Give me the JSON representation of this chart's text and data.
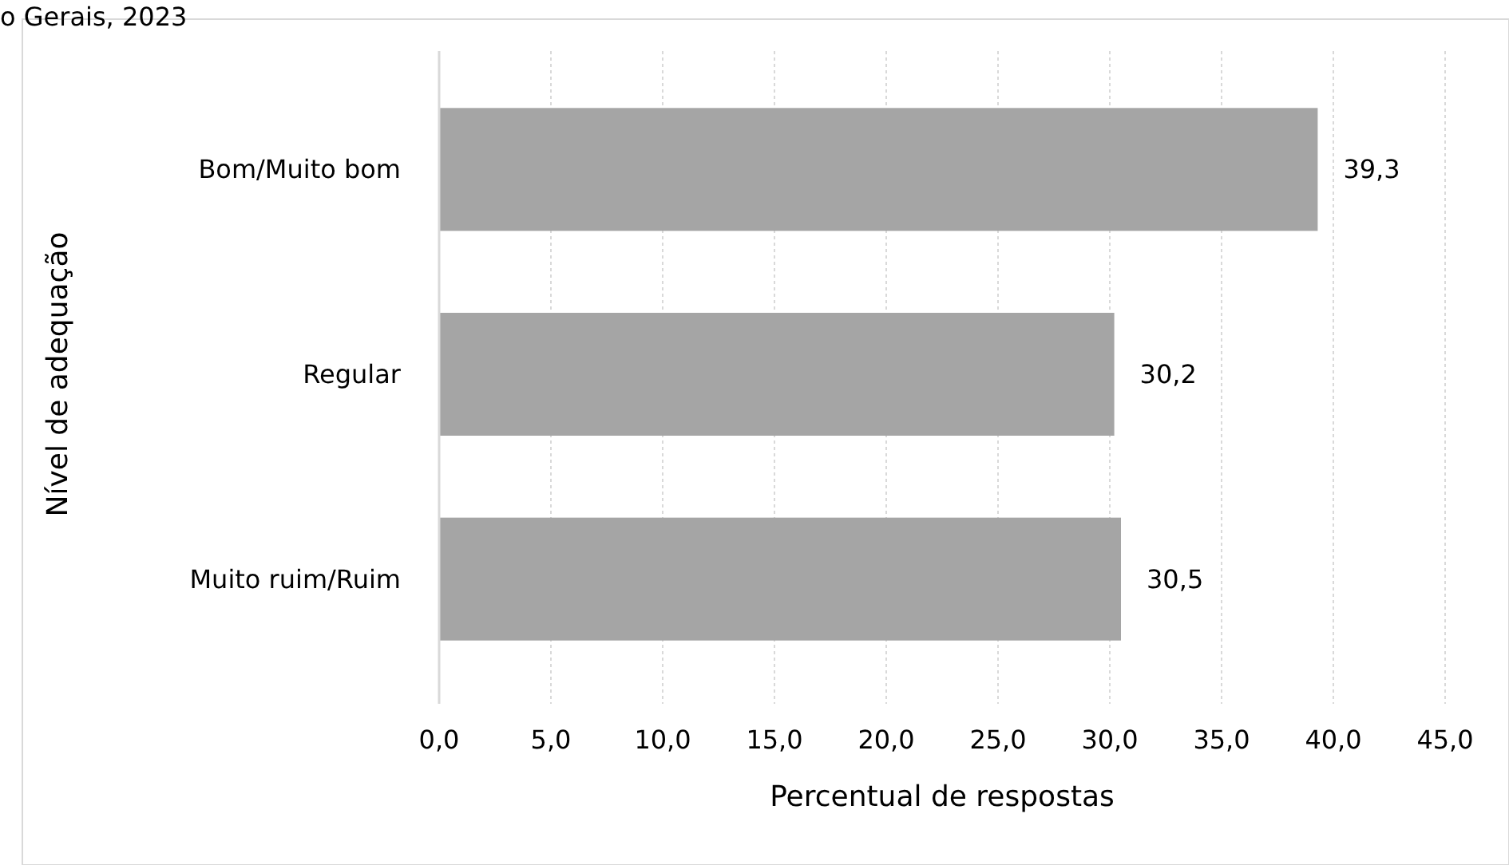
{
  "chart_data": {
    "type": "bar",
    "orientation": "horizontal",
    "title": "o Gerais, 2023",
    "xlabel": "Percentual de respostas",
    "ylabel": "Nível de adequação",
    "categories": [
      "Bom/Muito bom",
      "Regular",
      "Muito ruim/Ruim"
    ],
    "values": [
      39.3,
      30.2,
      30.5
    ],
    "value_labels": [
      "39,3",
      "30,2",
      "30,5"
    ],
    "color": "#a5a5a5",
    "xlim": [
      0,
      45
    ],
    "xticks": [
      {
        "value": 0,
        "label": "0,0"
      },
      {
        "value": 5,
        "label": "5,0"
      },
      {
        "value": 10,
        "label": "10,0"
      },
      {
        "value": 15,
        "label": "15,0"
      },
      {
        "value": 20,
        "label": "20,0"
      },
      {
        "value": 25,
        "label": "25,0"
      },
      {
        "value": 30,
        "label": "30,0"
      },
      {
        "value": 35,
        "label": "35,0"
      },
      {
        "value": 40,
        "label": "40,0"
      },
      {
        "value": 45,
        "label": "45,0"
      }
    ],
    "grid": "x"
  }
}
